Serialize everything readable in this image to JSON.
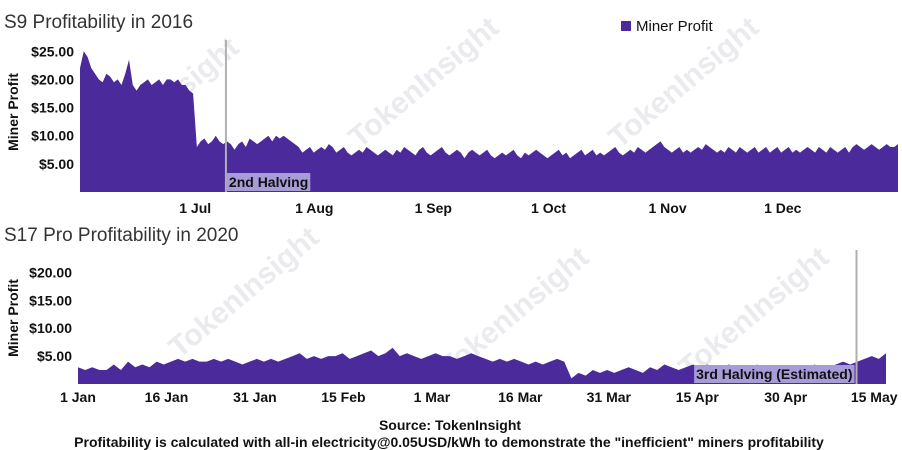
{
  "chart_data": [
    {
      "type": "area",
      "title": "S9 Profitability in 2016",
      "ylabel": "Miner Profit",
      "ylim": [
        0,
        27
      ],
      "yticks": [
        "$5.00",
        "$10.00",
        "$15.00",
        "$20.00",
        "$25.00"
      ],
      "ytick_values": [
        5,
        10,
        15,
        20,
        25
      ],
      "xticks": [
        "1 Jul",
        "1 Aug",
        "1 Sep",
        "1 Oct",
        "1 Nov",
        "1 Dec"
      ],
      "xtick_day_offsets": [
        30,
        61,
        92,
        122,
        153,
        183
      ],
      "x_start": "2016-06-01",
      "x_end": "2016-12-31",
      "series": [
        {
          "name": "Miner Profit",
          "values": [
            22,
            25,
            24,
            22,
            21,
            20,
            19.5,
            21,
            20.5,
            19.5,
            20,
            19,
            21,
            23.5,
            19,
            18,
            19,
            19.5,
            20,
            19,
            19.5,
            20,
            19,
            20,
            20,
            19.5,
            20,
            19,
            19,
            18,
            17.5,
            8,
            9,
            9.5,
            8.5,
            9,
            10,
            9,
            8.5,
            9,
            8.5,
            7.5,
            8.5,
            9,
            8,
            9.5,
            9,
            8.5,
            9,
            9.5,
            10,
            9,
            10,
            9.5,
            10,
            9.5,
            9,
            8.5,
            8,
            7,
            7.5,
            8,
            7,
            7.5,
            8,
            7.5,
            8.5,
            8,
            7,
            7.5,
            8,
            7,
            6.5,
            7,
            7.5,
            7,
            8,
            7.5,
            7,
            6.5,
            7,
            7.5,
            7,
            6.5,
            7.5,
            7,
            8,
            7.5,
            7,
            6.5,
            7.5,
            8,
            7,
            6.5,
            7,
            7.5,
            8,
            7,
            6.5,
            7,
            7.5,
            7,
            6,
            7,
            7.5,
            7,
            6.5,
            7,
            7.5,
            6.5,
            6,
            6.5,
            7,
            6.5,
            7,
            7.5,
            6.5,
            6,
            7,
            6.5,
            7,
            7.5,
            7,
            6.5,
            6,
            6.5,
            7,
            7.5,
            6.5,
            7,
            6,
            6.5,
            7,
            7.5,
            6.5,
            7,
            7.5,
            6.5,
            7,
            6.5,
            7,
            7.5,
            8,
            7,
            6.5,
            7,
            7.5,
            7,
            8,
            7.5,
            7,
            7.5,
            8,
            8.5,
            9,
            8,
            7.5,
            7,
            7.5,
            8,
            7,
            7.5,
            7,
            7.5,
            8,
            7.5,
            8.5,
            8,
            7.5,
            7,
            7.5,
            7,
            8,
            7.5,
            7,
            8,
            7.5,
            7,
            7.5,
            8,
            7,
            7.5,
            8,
            7,
            7.5,
            8,
            7,
            7.5,
            8,
            7,
            7.5,
            7,
            7.5,
            8,
            7.5,
            7,
            8,
            7.5,
            7,
            8,
            7.5,
            7,
            7.5,
            8,
            7,
            8,
            8.5,
            8,
            7.5,
            8,
            8.5,
            8,
            7.5,
            8,
            8.5,
            8,
            8,
            8.5
          ]
        }
      ],
      "annotations": [
        {
          "label": "2nd Halving",
          "x": "2016-07-09"
        }
      ],
      "legend": {
        "label": "Miner Profit",
        "color": "#4b2a9c",
        "position": "top-right"
      }
    },
    {
      "type": "area",
      "title": "S17 Pro Profitability in 2020",
      "ylabel": "Miner Profit",
      "ylim": [
        0,
        24
      ],
      "yticks": [
        "$5.00",
        "$10.00",
        "$15.00",
        "$20.00"
      ],
      "ytick_values": [
        5,
        10,
        15,
        20
      ],
      "xticks": [
        "1 Jan",
        "16 Jan",
        "31 Jan",
        "15 Feb",
        "1 Mar",
        "16 Mar",
        "31 Mar",
        "15 Apr",
        "30 Apr",
        "15 May"
      ],
      "xtick_day_offsets": [
        0,
        15,
        30,
        45,
        60,
        75,
        90,
        105,
        120,
        135
      ],
      "x_start": "2020-01-01",
      "x_end": "2020-05-17",
      "series": [
        {
          "name": "Miner Profit",
          "values": [
            3,
            2.5,
            3,
            2.5,
            2.5,
            3.5,
            2.5,
            4,
            3,
            3.5,
            3,
            4,
            3.5,
            4,
            4.5,
            4,
            4.5,
            4,
            4,
            4.5,
            4,
            4.5,
            4,
            3.5,
            4,
            4.5,
            4,
            4.5,
            4,
            4.5,
            5,
            5.5,
            4.5,
            5,
            4.5,
            5,
            5,
            5.5,
            4.5,
            5,
            5.5,
            6,
            5,
            5.5,
            6.5,
            5,
            5.5,
            5,
            4.5,
            5,
            5.5,
            5,
            5,
            4.5,
            5,
            5.5,
            5,
            4.5,
            4,
            4.5,
            4,
            4.5,
            4,
            3.5,
            4,
            3.5,
            4,
            4.5,
            4,
            1,
            2,
            1.5,
            2.5,
            2,
            2.5,
            2,
            2.5,
            3,
            2.5,
            2,
            3,
            2.5,
            3.5,
            3,
            2.5,
            3,
            3.5,
            3,
            3.5,
            3,
            3,
            3.5,
            3,
            2.5,
            3,
            3.5,
            2,
            2.5,
            2,
            2.5,
            2,
            2,
            2.5,
            3.5,
            3,
            3,
            3.5,
            4,
            3.5,
            4,
            4.5,
            5,
            4.5,
            5.5
          ]
        }
      ],
      "annotations": [
        {
          "label": "3rd Halving (Estimated)",
          "x": "2020-05-12"
        }
      ]
    }
  ],
  "footer": {
    "source": "Source: TokenInsight",
    "note": "Profitability is calculated with all-in electricity@0.05USD/kWh to demonstrate the \"inefficient\" miners profitability"
  },
  "watermark": "TokenInsight",
  "colors": {
    "area": "#4b2a9c",
    "halving_box": "#a79bd8",
    "halving_line": "#b0b0b0",
    "text": "#111111"
  }
}
